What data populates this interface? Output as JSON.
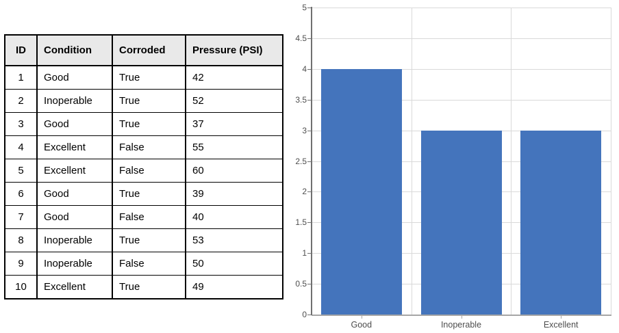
{
  "table": {
    "columns": [
      "ID",
      "Condition",
      "Corroded",
      "Pressure (PSI)"
    ],
    "rows": [
      [
        "1",
        "Good",
        "True",
        "42"
      ],
      [
        "2",
        "Inoperable",
        "True",
        "52"
      ],
      [
        "3",
        "Good",
        "True",
        "37"
      ],
      [
        "4",
        "Excellent",
        "False",
        "55"
      ],
      [
        "5",
        "Excellent",
        "False",
        "60"
      ],
      [
        "6",
        "Good",
        "True",
        "39"
      ],
      [
        "7",
        "Good",
        "False",
        "40"
      ],
      [
        "8",
        "Inoperable",
        "True",
        "53"
      ],
      [
        "9",
        "Inoperable",
        "False",
        "50"
      ],
      [
        "10",
        "Excellent",
        "True",
        "49"
      ]
    ],
    "header_background": "#e9e9e9",
    "border_color": "#000000"
  },
  "chart_data": {
    "type": "bar",
    "categories": [
      "Good",
      "Inoperable",
      "Excellent"
    ],
    "values": [
      4,
      3,
      3
    ],
    "title": "",
    "xlabel": "",
    "ylabel": "",
    "ylim": [
      0,
      5
    ],
    "ytick_step": 0.5,
    "ytick_labels": [
      "0",
      "0.5",
      "1",
      "1.5",
      "2",
      "2.5",
      "3",
      "3.5",
      "4",
      "4.5",
      "5"
    ],
    "grid": true,
    "legend_position": "none",
    "bar_color": "#4474BC",
    "gridline_color": "#D9D9D9",
    "axis_line_color": "#707070",
    "baseline_color": "#A6A6A6",
    "label_color": "#4D4D4D"
  }
}
